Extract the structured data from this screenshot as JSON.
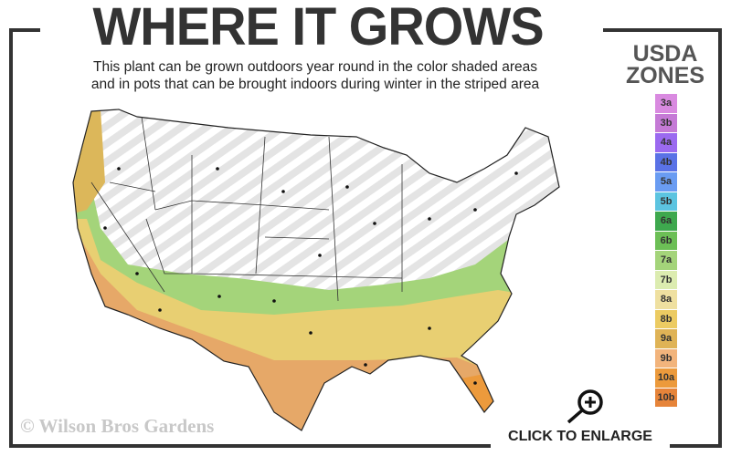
{
  "header": {
    "title": "WHERE IT GROWS",
    "subtitle_line1": "This plant can be grown outdoors year round in the color shaded areas",
    "subtitle_line2": "and in pots that can be brought indoors during winter in the striped area"
  },
  "legend": {
    "title_line1": "USDA",
    "title_line2": "ZONES",
    "zones": [
      {
        "label": "3a",
        "color": "#d98ae0"
      },
      {
        "label": "3b",
        "color": "#c57ad6"
      },
      {
        "label": "4a",
        "color": "#9b6af0"
      },
      {
        "label": "4b",
        "color": "#5a72e6"
      },
      {
        "label": "5a",
        "color": "#6a9cf2"
      },
      {
        "label": "5b",
        "color": "#5cc4e0"
      },
      {
        "label": "6a",
        "color": "#3ea84e"
      },
      {
        "label": "6b",
        "color": "#6cbf56"
      },
      {
        "label": "7a",
        "color": "#a4d47a"
      },
      {
        "label": "7b",
        "color": "#dcecb0"
      },
      {
        "label": "8a",
        "color": "#efe0a0"
      },
      {
        "label": "8b",
        "color": "#eccb62"
      },
      {
        "label": "9a",
        "color": "#dfb356"
      },
      {
        "label": "9b",
        "color": "#f2b47c"
      },
      {
        "label": "10a",
        "color": "#ec9a3c"
      },
      {
        "label": "10b",
        "color": "#e6843a"
      }
    ]
  },
  "footer": {
    "copyright": "© Wilson Bros Gardens",
    "enlarge_label": "CLICK TO ENLARGE",
    "enlarge_icon": "zoom-in-icon"
  }
}
